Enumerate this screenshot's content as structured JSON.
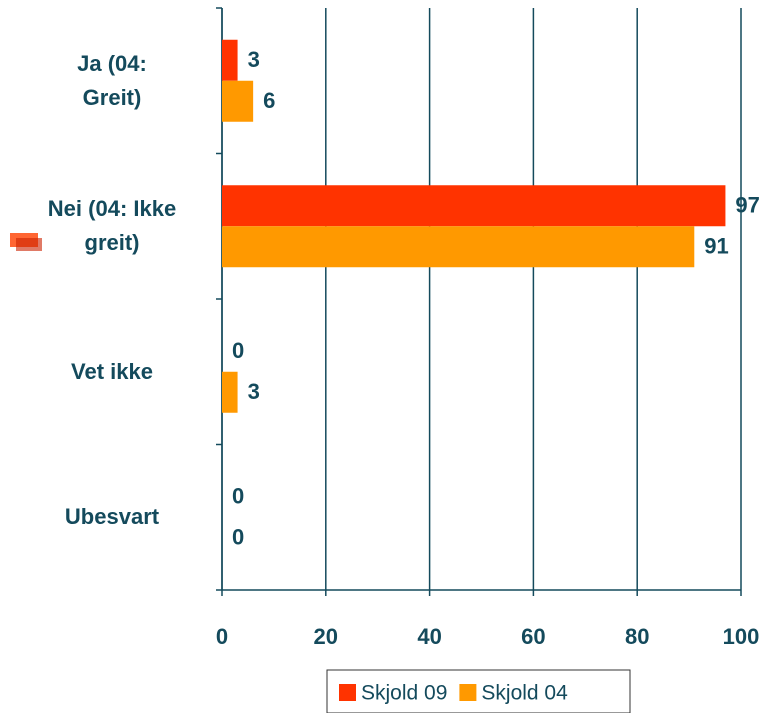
{
  "chart_data": {
    "type": "bar",
    "orientation": "horizontal",
    "categories": [
      "Ja (04:\nGreit)",
      "Nei (04: Ikke\ngreit)",
      "Vet ikke",
      "Ubesvart"
    ],
    "series": [
      {
        "name": "Skjold 09",
        "color": "#ff3300",
        "values": [
          3,
          97,
          0,
          0
        ]
      },
      {
        "name": "Skjold 04",
        "color": "#ff9900",
        "values": [
          6,
          91,
          3,
          0
        ]
      }
    ],
    "xlim": [
      0,
      100
    ],
    "xticks": [
      0,
      20,
      40,
      60,
      80,
      100
    ],
    "grid": true,
    "legend": "bottom"
  }
}
